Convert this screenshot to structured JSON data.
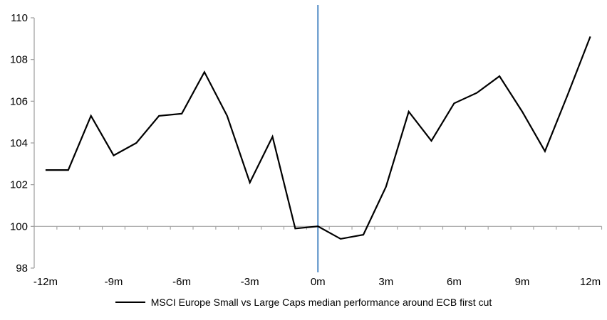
{
  "chart_data": {
    "type": "line",
    "title": "",
    "xlabel": "",
    "ylabel": "",
    "x_unit": "months relative to ECB first cut",
    "x": [
      -12,
      -11,
      -10,
      -9,
      -8,
      -7,
      -6,
      -5,
      -4,
      -3,
      -2,
      -1,
      0,
      1,
      2,
      3,
      4,
      5,
      6,
      7,
      8,
      9,
      10,
      11,
      12
    ],
    "series": [
      {
        "name": "MSCI Europe Small vs Large Caps median performance around ECB first cut",
        "values": [
          102.7,
          102.7,
          105.3,
          103.4,
          104.0,
          105.3,
          105.4,
          107.4,
          105.3,
          102.1,
          104.3,
          99.9,
          100.0,
          99.4,
          99.6,
          101.9,
          105.5,
          104.1,
          105.9,
          106.4,
          107.2,
          105.5,
          103.6,
          106.3,
          109.1
        ]
      }
    ],
    "ylim": [
      98,
      110
    ],
    "y_ticks": [
      110,
      108,
      106,
      104,
      102,
      100,
      98
    ],
    "x_tick_positions": [
      -12,
      -9,
      -6,
      -3,
      0,
      3,
      6,
      9,
      12
    ],
    "x_tick_labels": [
      "-12m",
      "-9m",
      "-6m",
      "-3m",
      "0m",
      "3m",
      "6m",
      "9m",
      "12m"
    ],
    "baseline_value": 100,
    "event_line_at_x": 0,
    "grid": "off",
    "legend_position": "bottom-center",
    "colors": {
      "series": "#000000",
      "event_line": "#75A3D1",
      "axis": "#9D9D9D",
      "baseline": "#A6A6A6",
      "tick_text": "#000000"
    }
  }
}
